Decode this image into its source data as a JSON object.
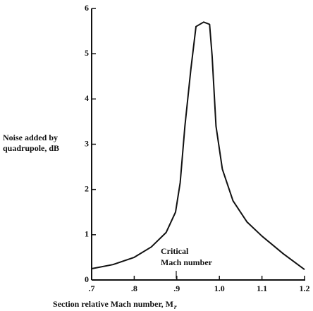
{
  "chart_data": {
    "type": "line",
    "xlabel": "Section relative Mach number, M",
    "xlabel_sub": "r",
    "ylabel": [
      "Noise added by",
      "quadrupole, dB"
    ],
    "annotation": [
      "Critical",
      "Mach number"
    ],
    "x": [
      0.7,
      0.75,
      0.8,
      0.84,
      0.875,
      0.897,
      0.908,
      0.919,
      0.933,
      0.945,
      0.963,
      0.977,
      0.983,
      0.992,
      1.007,
      1.032,
      1.065,
      1.1,
      1.15,
      1.2
    ],
    "series": [
      {
        "color": "#111111",
        "values": [
          0.25,
          0.34,
          0.5,
          0.73,
          1.05,
          1.5,
          2.15,
          3.4,
          4.65,
          5.6,
          5.7,
          5.65,
          4.95,
          3.4,
          2.45,
          1.75,
          1.28,
          0.97,
          0.58,
          0.23
        ]
      }
    ],
    "xlim": [
      0.7,
      1.2
    ],
    "xticks": [
      {
        "value": 0.7,
        "label": ".7"
      },
      {
        "value": 0.8,
        "label": ".8"
      },
      {
        "value": 0.9,
        "label": ".9"
      },
      {
        "value": 1.0,
        "label": "1.0"
      },
      1.1,
      1.2
    ],
    "ylim": [
      0,
      6
    ],
    "yticks": [
      0,
      1,
      2,
      3,
      4,
      5,
      6
    ],
    "grid": false
  }
}
